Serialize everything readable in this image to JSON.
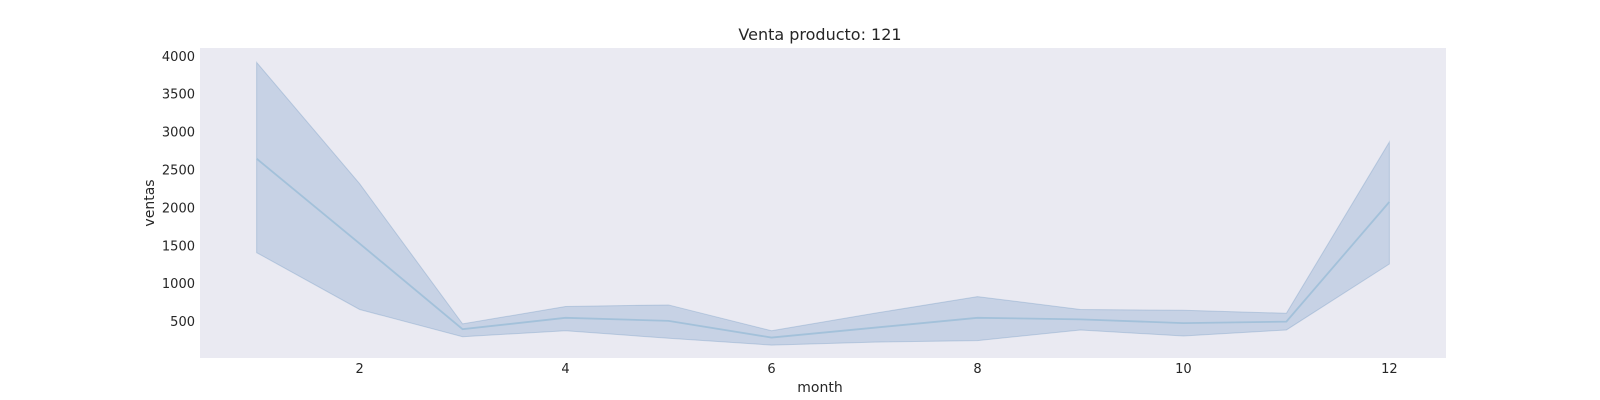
{
  "chart_data": {
    "type": "line",
    "title": "Venta producto: 121",
    "xlabel": "month",
    "ylabel": "ventas",
    "xlim": [
      0.45,
      12.55
    ],
    "ylim": [
      20,
      4110
    ],
    "x_ticks": [
      2,
      4,
      6,
      8,
      10,
      12
    ],
    "y_ticks": [
      500,
      1000,
      1500,
      2000,
      2500,
      3000,
      3500,
      4000
    ],
    "grid": false,
    "legend": "none",
    "background_color": "#eaeaf2",
    "line_color": "#a3c1da",
    "band_color": "#4c7fb5",
    "series": [
      {
        "x": [
          1,
          2,
          3,
          4,
          5,
          6,
          7,
          8,
          9,
          10,
          11,
          12
        ],
        "y": [
          2650,
          1530,
          400,
          550,
          510,
          290,
          420,
          550,
          530,
          480,
          500,
          2080
        ],
        "ci_lower": [
          1410,
          660,
          300,
          380,
          280,
          190,
          230,
          250,
          390,
          310,
          390,
          1260
        ],
        "ci_upper": [
          3920,
          2320,
          470,
          700,
          720,
          380,
          610,
          830,
          660,
          650,
          610,
          2870
        ]
      }
    ]
  }
}
